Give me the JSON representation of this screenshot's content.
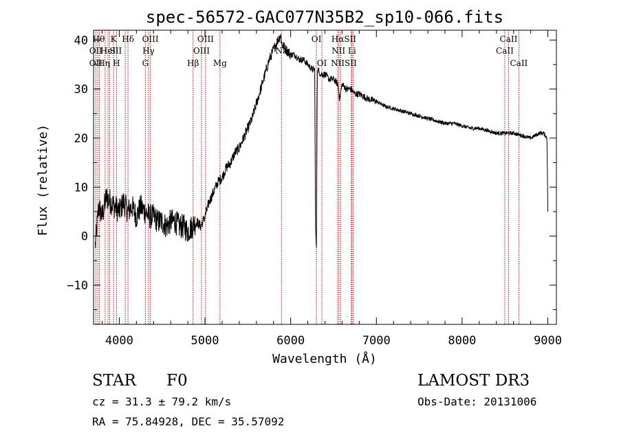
{
  "chart_data": {
    "type": "line",
    "title": "spec-56572-GAC077N35B2_sp10-066.fits",
    "xlabel": "Wavelength (Å)",
    "ylabel": "Flux (relative)",
    "xlim": [
      3700,
      9100
    ],
    "ylim": [
      -18,
      42
    ],
    "xticks": [
      4000,
      5000,
      6000,
      7000,
      8000,
      9000
    ],
    "xtick_labels": [
      "4000",
      "5000",
      "6000",
      "7000",
      "8000",
      "9000"
    ],
    "yticks": [
      -10,
      0,
      10,
      20,
      30,
      40
    ],
    "ytick_labels": [
      "−10",
      "0",
      "10",
      "20",
      "30",
      "40"
    ],
    "grid": false,
    "legend": "none",
    "series": [
      {
        "name": "flux",
        "color": "#000000",
        "x": [
          3720,
          3760,
          3800,
          3850,
          3900,
          3950,
          4000,
          4050,
          4100,
          4150,
          4200,
          4250,
          4300,
          4350,
          4400,
          4450,
          4500,
          4550,
          4600,
          4650,
          4700,
          4750,
          4800,
          4850,
          4900,
          4950,
          5000,
          5050,
          5100,
          5150,
          5200,
          5250,
          5300,
          5350,
          5400,
          5450,
          5500,
          5550,
          5600,
          5650,
          5700,
          5750,
          5800,
          5850,
          5880,
          5900,
          5950,
          6000,
          6050,
          6100,
          6150,
          6200,
          6250,
          6280,
          6290,
          6300,
          6310,
          6320,
          6350,
          6400,
          6450,
          6500,
          6550,
          6570,
          6600,
          6650,
          6700,
          6750,
          6800,
          6900,
          7000,
          7100,
          7200,
          7300,
          7400,
          7500,
          7600,
          7700,
          7800,
          7900,
          8000,
          8100,
          8200,
          8300,
          8400,
          8500,
          8600,
          8700,
          8800,
          8900,
          8950,
          8990,
          9000
        ],
        "y": [
          -2,
          6,
          4,
          8,
          7,
          6,
          5,
          7,
          5,
          6,
          4,
          6,
          5,
          4,
          4,
          3,
          3,
          2,
          3,
          3,
          2,
          2,
          1,
          2,
          3,
          2,
          4,
          7,
          9,
          11,
          12,
          14,
          15,
          17,
          18,
          20,
          22,
          24,
          27,
          30,
          33,
          36,
          38,
          40,
          41,
          39,
          38,
          37,
          37,
          36,
          36,
          35,
          34,
          34,
          2,
          -3,
          33,
          34,
          33,
          33,
          32,
          32,
          31,
          28,
          31,
          30,
          30,
          29,
          29,
          28,
          27.5,
          26.5,
          26,
          25.5,
          25,
          24.5,
          24,
          23.5,
          23,
          23,
          22.5,
          22,
          22,
          21.5,
          21,
          21,
          21,
          20.5,
          20,
          21,
          21,
          20,
          5
        ]
      }
    ],
    "lines": [
      {
        "x": 3727,
        "label": "OII"
      },
      {
        "x": 3750,
        "label": "Hθ"
      },
      {
        "x": 3770,
        "label": "Hη"
      },
      {
        "x": 3835,
        "label": "Hη"
      },
      {
        "x": 3869,
        "label": "HeI"
      },
      {
        "x": 3889,
        "label": "Hζ"
      },
      {
        "x": 3934,
        "label": "K"
      },
      {
        "x": 3968,
        "label": "H"
      },
      {
        "x": 4070,
        "label": "SII"
      },
      {
        "x": 4102,
        "label": "Hδ"
      },
      {
        "x": 4305,
        "label": "G"
      },
      {
        "x": 4341,
        "label": "Hγ"
      },
      {
        "x": 4363,
        "label": "OIII"
      },
      {
        "x": 4861,
        "label": "Hβ"
      },
      {
        "x": 4959,
        "label": "OIII"
      },
      {
        "x": 5007,
        "label": "OIII"
      },
      {
        "x": 5175,
        "label": "Mg"
      },
      {
        "x": 5893,
        "label": "Na"
      },
      {
        "x": 6300,
        "label": "OI"
      },
      {
        "x": 6364,
        "label": "OI"
      },
      {
        "x": 6548,
        "label": "NII"
      },
      {
        "x": 6563,
        "label": "Hα"
      },
      {
        "x": 6583,
        "label": "NII"
      },
      {
        "x": 6707,
        "label": "Li"
      },
      {
        "x": 6716,
        "label": "SII"
      },
      {
        "x": 6731,
        "label": "SII"
      },
      {
        "x": 8498,
        "label": "CaII"
      },
      {
        "x": 8542,
        "label": "CaII"
      },
      {
        "x": 8662,
        "label": "CaII"
      }
    ],
    "line_labels": [
      {
        "text": "Hθ",
        "x": 3760,
        "row": 0
      },
      {
        "text": "OII",
        "x": 3727,
        "row": 1
      },
      {
        "text": "OII",
        "x": 3727,
        "row": 2
      },
      {
        "text": "Hη",
        "x": 3820,
        "row": 2
      },
      {
        "text": "K",
        "x": 3934,
        "row": 0
      },
      {
        "text": "HeI",
        "x": 3869,
        "row": 1
      },
      {
        "text": "SII",
        "x": 3960,
        "row": 1
      },
      {
        "text": "H",
        "x": 3968,
        "row": 2
      },
      {
        "text": "Hδ",
        "x": 4102,
        "row": 0
      },
      {
        "text": "OIII",
        "x": 4363,
        "row": 0
      },
      {
        "text": "Hγ",
        "x": 4341,
        "row": 1
      },
      {
        "text": "G",
        "x": 4305,
        "row": 2
      },
      {
        "text": "OIII",
        "x": 5007,
        "row": 0
      },
      {
        "text": "OIII",
        "x": 4959,
        "row": 1
      },
      {
        "text": "Hβ",
        "x": 4861,
        "row": 2
      },
      {
        "text": "Mg",
        "x": 5175,
        "row": 2
      },
      {
        "text": "Na",
        "x": 5893,
        "row": 1
      },
      {
        "text": "OI",
        "x": 6300,
        "row": 0
      },
      {
        "text": "OI",
        "x": 6364,
        "row": 2
      },
      {
        "text": "HαSII",
        "x": 6620,
        "row": 0
      },
      {
        "text": "NII Li",
        "x": 6620,
        "row": 1
      },
      {
        "text": "NIISII",
        "x": 6620,
        "row": 2
      },
      {
        "text": "CaII",
        "x": 8542,
        "row": 0
      },
      {
        "text": "CaII",
        "x": 8498,
        "row": 1
      },
      {
        "text": "CaII",
        "x": 8662,
        "row": 2
      }
    ]
  },
  "info": {
    "object_class": "STAR",
    "subclass": "F0",
    "survey": "LAMOST DR3",
    "redshift": "cz = 31.3 ± 79.2 km/s",
    "obs_date": "Obs-Date: 20131006",
    "coordinates": "RA =  75.84928, DEC =  35.57092"
  },
  "colors": {
    "axis": "#000000",
    "spectrum": "#000000",
    "line_markers": "#cc0000",
    "background": "#ffffff"
  }
}
